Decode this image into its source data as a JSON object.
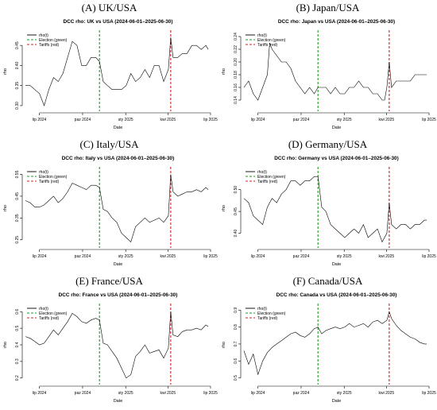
{
  "colors": {
    "rho": "#000000",
    "election": "#1a9e1a",
    "tariffs": "#d42020",
    "axis": "#000000"
  },
  "legend": {
    "rho": "rho(t)",
    "election": "Election (green)",
    "tariffs": "Tariffs (red)",
    "position": "top-left"
  },
  "x_tick_labels": [
    "lip 2024",
    "paz 2024",
    "sty 2025",
    "kwi 2025",
    "lip 2025"
  ],
  "panels": [
    {
      "heading": "(A) UK/USA"
    },
    {
      "heading": "(B) Japan/USA"
    },
    {
      "heading": "(C) Italy/USA"
    },
    {
      "heading": "(D) Germany/USA"
    },
    {
      "heading": "(E) France/USA"
    },
    {
      "heading": "(F) Canada/USA"
    }
  ],
  "chart_data": [
    {
      "type": "line",
      "title": "DCC rho: UK vs USA (2024-06-01–2025-06-30)",
      "xlabel": "Date",
      "ylabel": "rho",
      "xlim": [
        0,
        395
      ],
      "ylim": [
        0.29,
        0.48
      ],
      "yticks": [
        0.3,
        0.35,
        0.4,
        0.45
      ],
      "ytick_labels": [
        "0.30",
        "0.35",
        "0.40",
        "0.45"
      ],
      "election_x": 158,
      "tariffs_x": 310,
      "x": [
        0,
        10,
        20,
        30,
        40,
        50,
        60,
        70,
        80,
        90,
        100,
        110,
        120,
        130,
        140,
        150,
        158,
        166,
        175,
        185,
        195,
        205,
        215,
        225,
        235,
        245,
        255,
        265,
        275,
        285,
        295,
        305,
        310,
        315,
        325,
        335,
        345,
        355,
        365,
        375,
        385,
        390
      ],
      "y": [
        0.35,
        0.35,
        0.34,
        0.33,
        0.3,
        0.34,
        0.37,
        0.36,
        0.38,
        0.42,
        0.46,
        0.45,
        0.4,
        0.4,
        0.42,
        0.42,
        0.41,
        0.36,
        0.35,
        0.34,
        0.34,
        0.34,
        0.35,
        0.38,
        0.36,
        0.37,
        0.39,
        0.37,
        0.4,
        0.4,
        0.36,
        0.39,
        0.47,
        0.42,
        0.42,
        0.43,
        0.43,
        0.45,
        0.45,
        0.44,
        0.45,
        0.44
      ]
    },
    {
      "type": "line",
      "title": "DCC rho: Japan vs USA (2024-06-01–2025-06-30)",
      "xlabel": "Date",
      "ylabel": "rho",
      "xlim": [
        0,
        395
      ],
      "ylim": [
        0.125,
        0.245
      ],
      "yticks": [
        0.14,
        0.16,
        0.18,
        0.2,
        0.22,
        0.24
      ],
      "ytick_labels": [
        "0.14",
        "0.16",
        "0.18",
        "0.20",
        "0.22",
        "0.24"
      ],
      "election_x": 158,
      "tariffs_x": 310,
      "x": [
        0,
        10,
        20,
        30,
        40,
        50,
        55,
        60,
        70,
        80,
        90,
        100,
        110,
        120,
        130,
        140,
        150,
        158,
        166,
        175,
        185,
        195,
        205,
        215,
        225,
        235,
        245,
        255,
        265,
        275,
        285,
        295,
        300,
        305,
        310,
        315,
        325,
        335,
        345,
        355,
        365,
        375,
        385,
        390
      ],
      "y": [
        0.16,
        0.17,
        0.15,
        0.14,
        0.16,
        0.18,
        0.23,
        0.22,
        0.21,
        0.2,
        0.2,
        0.19,
        0.17,
        0.16,
        0.15,
        0.16,
        0.15,
        0.16,
        0.16,
        0.16,
        0.15,
        0.16,
        0.15,
        0.15,
        0.16,
        0.16,
        0.17,
        0.16,
        0.16,
        0.15,
        0.15,
        0.14,
        0.14,
        0.16,
        0.2,
        0.16,
        0.17,
        0.17,
        0.17,
        0.17,
        0.18,
        0.18,
        0.18,
        0.18
      ]
    },
    {
      "type": "line",
      "title": "DCC rho: Italy vs USA (2024-06-01–2025-06-30)",
      "xlabel": "Date",
      "ylabel": "rho",
      "xlim": [
        0,
        395
      ],
      "ylim": [
        0.22,
        0.57
      ],
      "yticks": [
        0.25,
        0.35,
        0.45,
        0.55
      ],
      "ytick_labels": [
        "0.25",
        "0.35",
        "0.45",
        "0.55"
      ],
      "election_x": 158,
      "tariffs_x": 310,
      "x": [
        0,
        10,
        20,
        30,
        40,
        50,
        60,
        70,
        80,
        90,
        100,
        110,
        120,
        130,
        140,
        150,
        158,
        166,
        175,
        185,
        195,
        205,
        215,
        225,
        235,
        245,
        255,
        265,
        275,
        285,
        295,
        305,
        310,
        315,
        325,
        335,
        345,
        355,
        365,
        375,
        385,
        390
      ],
      "y": [
        0.43,
        0.42,
        0.4,
        0.4,
        0.41,
        0.43,
        0.45,
        0.42,
        0.44,
        0.47,
        0.51,
        0.5,
        0.49,
        0.48,
        0.5,
        0.5,
        0.49,
        0.39,
        0.38,
        0.35,
        0.33,
        0.28,
        0.26,
        0.24,
        0.31,
        0.33,
        0.35,
        0.33,
        0.34,
        0.35,
        0.33,
        0.36,
        0.55,
        0.47,
        0.45,
        0.46,
        0.47,
        0.47,
        0.48,
        0.47,
        0.49,
        0.48
      ]
    },
    {
      "type": "line",
      "title": "DCC rho: Germany vs USA (2024-06-01–2025-06-30)",
      "xlabel": "Date",
      "ylabel": "rho",
      "xlim": [
        0,
        395
      ],
      "ylim": [
        0.37,
        0.545
      ],
      "yticks": [
        0.4,
        0.45,
        0.5
      ],
      "ytick_labels": [
        "0.40",
        "0.45",
        "0.50"
      ],
      "election_x": 158,
      "tariffs_x": 310,
      "x": [
        0,
        10,
        20,
        30,
        40,
        50,
        60,
        70,
        80,
        90,
        100,
        110,
        120,
        130,
        140,
        150,
        158,
        166,
        175,
        185,
        195,
        205,
        215,
        225,
        235,
        245,
        255,
        265,
        275,
        285,
        295,
        305,
        310,
        315,
        325,
        335,
        345,
        355,
        365,
        375,
        385,
        390
      ],
      "y": [
        0.48,
        0.47,
        0.44,
        0.43,
        0.42,
        0.46,
        0.48,
        0.47,
        0.49,
        0.5,
        0.52,
        0.52,
        0.51,
        0.52,
        0.52,
        0.53,
        0.53,
        0.46,
        0.45,
        0.42,
        0.41,
        0.4,
        0.39,
        0.4,
        0.41,
        0.4,
        0.42,
        0.39,
        0.4,
        0.41,
        0.38,
        0.4,
        0.47,
        0.42,
        0.41,
        0.42,
        0.42,
        0.41,
        0.42,
        0.42,
        0.43,
        0.43
      ]
    },
    {
      "type": "line",
      "title": "DCC rho: France vs USA (2024-06-01–2025-06-30)",
      "xlabel": "Date",
      "ylabel": "rho",
      "xlim": [
        0,
        395
      ],
      "ylim": [
        0.17,
        0.63
      ],
      "yticks": [
        0.2,
        0.3,
        0.4,
        0.5,
        0.6
      ],
      "ytick_labels": [
        "0.2",
        "0.3",
        "0.4",
        "0.5",
        "0.6"
      ],
      "election_x": 158,
      "tariffs_x": 310,
      "x": [
        0,
        10,
        20,
        30,
        40,
        50,
        60,
        70,
        80,
        90,
        100,
        110,
        120,
        130,
        140,
        150,
        158,
        166,
        175,
        185,
        195,
        205,
        215,
        225,
        235,
        245,
        255,
        265,
        275,
        285,
        295,
        305,
        310,
        315,
        325,
        335,
        345,
        355,
        365,
        375,
        385,
        390
      ],
      "y": [
        0.45,
        0.44,
        0.42,
        0.4,
        0.41,
        0.45,
        0.49,
        0.46,
        0.5,
        0.54,
        0.59,
        0.57,
        0.54,
        0.53,
        0.55,
        0.56,
        0.55,
        0.41,
        0.4,
        0.36,
        0.32,
        0.26,
        0.2,
        0.22,
        0.33,
        0.36,
        0.4,
        0.35,
        0.36,
        0.37,
        0.32,
        0.38,
        0.6,
        0.46,
        0.45,
        0.48,
        0.49,
        0.49,
        0.5,
        0.49,
        0.52,
        0.51
      ]
    },
    {
      "type": "line",
      "title": "DCC rho: Canada vs USA (2024-06-01–2025-06-30)",
      "xlabel": "Date",
      "ylabel": "rho",
      "xlim": [
        0,
        395
      ],
      "ylim": [
        0.47,
        0.92
      ],
      "yticks": [
        0.5,
        0.6,
        0.7,
        0.8,
        0.9
      ],
      "ytick_labels": [
        "0.5",
        "0.6",
        "0.7",
        "0.8",
        "0.9"
      ],
      "election_x": 158,
      "tariffs_x": 310,
      "x": [
        0,
        10,
        20,
        30,
        40,
        50,
        60,
        70,
        80,
        90,
        100,
        110,
        120,
        130,
        140,
        150,
        158,
        166,
        175,
        185,
        195,
        205,
        215,
        225,
        235,
        245,
        255,
        265,
        275,
        285,
        295,
        305,
        310,
        315,
        325,
        335,
        345,
        355,
        365,
        375,
        385,
        390
      ],
      "y": [
        0.66,
        0.58,
        0.64,
        0.52,
        0.6,
        0.65,
        0.68,
        0.7,
        0.72,
        0.74,
        0.76,
        0.77,
        0.75,
        0.74,
        0.76,
        0.79,
        0.8,
        0.76,
        0.78,
        0.79,
        0.8,
        0.79,
        0.8,
        0.82,
        0.8,
        0.81,
        0.82,
        0.8,
        0.83,
        0.84,
        0.82,
        0.84,
        0.89,
        0.85,
        0.81,
        0.78,
        0.76,
        0.74,
        0.73,
        0.71,
        0.7,
        0.7
      ]
    }
  ]
}
